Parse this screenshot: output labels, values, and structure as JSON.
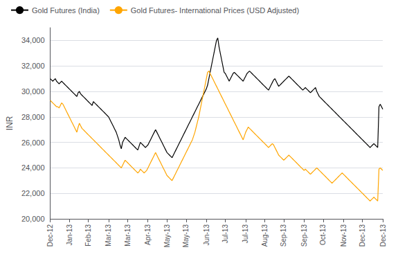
{
  "chart_data": {
    "type": "line",
    "ylabel": "INR",
    "categories": [
      "Dec-12",
      null,
      null,
      null,
      null,
      null,
      null,
      null,
      null,
      null,
      null,
      null,
      null,
      null,
      null,
      "Jan-13",
      null,
      null,
      null,
      null,
      null,
      null,
      null,
      null,
      null,
      null,
      null,
      null,
      null,
      null,
      "Feb-13",
      null,
      null,
      null,
      null,
      null,
      null,
      null,
      null,
      null,
      null,
      null,
      null,
      null,
      null,
      null,
      "Mar-13",
      null,
      null,
      null,
      null,
      null,
      null,
      null,
      null,
      null,
      null,
      null,
      null,
      null,
      null,
      "Mar-13",
      null,
      null,
      null,
      null,
      null,
      null,
      null,
      null,
      null,
      null,
      null,
      null,
      null,
      null,
      null,
      "Apr-13",
      null,
      null,
      null,
      null,
      null,
      null,
      null,
      null,
      null,
      null,
      null,
      null,
      null,
      null,
      "May-13",
      null,
      null,
      null,
      null,
      null,
      null,
      null,
      null,
      null,
      null,
      null,
      null,
      null,
      null,
      "May-13",
      null,
      null,
      null,
      null,
      null,
      null,
      null,
      null,
      null,
      null,
      null,
      null,
      null,
      null,
      null,
      "Jun-13",
      null,
      null,
      null,
      null,
      null,
      null,
      null,
      null,
      null,
      null,
      null,
      null,
      null,
      null,
      "Jul-13",
      null,
      null,
      null,
      null,
      null,
      null,
      null,
      null,
      null,
      null,
      null,
      null,
      null,
      null,
      null,
      "Jul-13",
      null,
      null,
      null,
      null,
      null,
      null,
      null,
      null,
      null,
      null,
      null,
      null,
      null,
      null,
      "Aug-13",
      null,
      null,
      null,
      null,
      null,
      null,
      null,
      null,
      null,
      null,
      null,
      null,
      null,
      null,
      "Sep-13",
      null,
      null,
      null,
      null,
      null,
      null,
      null,
      null,
      null,
      null,
      null,
      null,
      null,
      null,
      null,
      "Sep-13",
      null,
      null,
      null,
      null,
      null,
      null,
      null,
      null,
      null,
      null,
      null,
      null,
      null,
      null,
      "Oct-13",
      null,
      null,
      null,
      null,
      null,
      null,
      null,
      null,
      null,
      null,
      null,
      null,
      null,
      null,
      null,
      "Nov-13",
      null,
      null,
      null,
      null,
      null,
      null,
      null,
      null,
      null,
      null,
      null,
      null,
      null,
      null,
      "Dec-13",
      null,
      null,
      null,
      null,
      null,
      null,
      null,
      null,
      null,
      null,
      null,
      null,
      null,
      null,
      null,
      "Dec-13"
    ],
    "series": [
      {
        "name": "Gold Futures (India)",
        "color": "#000000",
        "values": [
          31000,
          30900,
          30800,
          30900,
          31000,
          30800,
          30700,
          30600,
          30700,
          30800,
          30700,
          30600,
          30500,
          30400,
          30300,
          30200,
          30100,
          30000,
          29900,
          29800,
          29700,
          29600,
          29900,
          30000,
          29800,
          29700,
          29600,
          29500,
          29400,
          29300,
          29200,
          29100,
          29000,
          28900,
          29200,
          29100,
          29000,
          28900,
          28800,
          28700,
          28600,
          28500,
          28400,
          28300,
          28200,
          28100,
          28000,
          27800,
          27600,
          27400,
          27200,
          27000,
          26800,
          26500,
          26200,
          25800,
          25500,
          26000,
          26200,
          26400,
          26300,
          26200,
          26100,
          26000,
          25900,
          25800,
          25700,
          25600,
          25500,
          25400,
          25700,
          26000,
          25900,
          25800,
          25700,
          25600,
          25700,
          25800,
          26000,
          26200,
          26400,
          26600,
          26800,
          27000,
          26800,
          26600,
          26400,
          26200,
          26000,
          25800,
          25600,
          25400,
          25200,
          25100,
          25000,
          24900,
          24800,
          25000,
          25200,
          25400,
          25600,
          25800,
          26000,
          26200,
          26400,
          26600,
          26800,
          27000,
          27200,
          27400,
          27600,
          27800,
          28000,
          28200,
          28400,
          28600,
          28800,
          29000,
          29200,
          29400,
          29600,
          29800,
          30000,
          30200,
          30500,
          31000,
          31500,
          32000,
          32500,
          33000,
          33500,
          34000,
          34200,
          33500,
          33000,
          32500,
          32000,
          31500,
          31400,
          31200,
          31000,
          30800,
          31000,
          31200,
          31400,
          31500,
          31400,
          31300,
          31200,
          31100,
          31000,
          30900,
          30800,
          31000,
          31200,
          31400,
          31500,
          31600,
          31500,
          31400,
          31300,
          31200,
          31100,
          31000,
          30900,
          30800,
          30700,
          30600,
          30500,
          30400,
          30300,
          30200,
          30100,
          30300,
          30500,
          30700,
          30900,
          31000,
          30800,
          30600,
          30400,
          30500,
          30600,
          30700,
          30800,
          30900,
          31000,
          31100,
          31200,
          31100,
          31000,
          30900,
          30800,
          30700,
          30600,
          30500,
          30400,
          30300,
          30200,
          30100,
          30200,
          30300,
          30200,
          30100,
          30000,
          29900,
          30000,
          30100,
          30200,
          30300,
          30000,
          29800,
          29600,
          29500,
          29400,
          29300,
          29200,
          29100,
          29000,
          28900,
          28800,
          28700,
          28600,
          28500,
          28400,
          28300,
          28200,
          28100,
          28000,
          27900,
          27800,
          27700,
          27600,
          27500,
          27400,
          27300,
          27200,
          27100,
          27000,
          26900,
          26800,
          26700,
          26600,
          26500,
          26400,
          26300,
          26200,
          26100,
          26000,
          25900,
          25800,
          25700,
          25600,
          25700,
          25800,
          25900,
          25800,
          25700,
          25600,
          28800,
          29000,
          28800,
          28600
        ]
      },
      {
        "name": "Gold Futures- International Prices (USD Adjusted)",
        "color": "#FFA500",
        "values": [
          29300,
          29200,
          29100,
          29000,
          28900,
          28800,
          28800,
          28700,
          28900,
          29100,
          29000,
          28800,
          28600,
          28400,
          28200,
          28000,
          27800,
          27600,
          27400,
          27200,
          27000,
          26800,
          27200,
          27500,
          27300,
          27100,
          27000,
          26900,
          26800,
          26700,
          26600,
          26500,
          26400,
          26300,
          26200,
          26100,
          26000,
          25900,
          25800,
          25700,
          25600,
          25500,
          25400,
          25300,
          25200,
          25100,
          25000,
          24900,
          24800,
          24700,
          24600,
          24500,
          24400,
          24300,
          24200,
          24100,
          24000,
          24200,
          24400,
          24600,
          24500,
          24400,
          24300,
          24200,
          24100,
          24000,
          23900,
          23800,
          23700,
          23600,
          23700,
          23900,
          23800,
          23700,
          23600,
          23700,
          23800,
          24000,
          24200,
          24400,
          24600,
          24800,
          25000,
          25200,
          25000,
          24800,
          24600,
          24400,
          24200,
          24000,
          23800,
          23600,
          23400,
          23300,
          23200,
          23100,
          23000,
          23200,
          23400,
          23600,
          23800,
          24000,
          24200,
          24400,
          24600,
          24800,
          25000,
          25200,
          25400,
          25600,
          25800,
          26000,
          26200,
          26500,
          26800,
          27200,
          27600,
          28000,
          28500,
          29000,
          29500,
          30000,
          30500,
          31000,
          31500,
          31600,
          31400,
          31200,
          31000,
          30800,
          30600,
          30400,
          30200,
          30000,
          29800,
          29600,
          29400,
          29200,
          29000,
          28800,
          28600,
          28400,
          28200,
          28000,
          27800,
          27600,
          27400,
          27200,
          27000,
          26800,
          26600,
          26400,
          26200,
          26500,
          26800,
          27000,
          27200,
          27100,
          27000,
          26900,
          26800,
          26700,
          26600,
          26500,
          26400,
          26300,
          26200,
          26100,
          26000,
          25900,
          25800,
          25700,
          25600,
          25700,
          25800,
          25900,
          25800,
          25600,
          25400,
          25200,
          25000,
          24900,
          24800,
          24700,
          24600,
          24700,
          24800,
          24900,
          25000,
          24900,
          24800,
          24700,
          24600,
          24500,
          24400,
          24300,
          24200,
          24100,
          24000,
          23900,
          23800,
          23900,
          23800,
          23700,
          23600,
          23500,
          23600,
          23700,
          23800,
          23900,
          24000,
          23900,
          23800,
          23700,
          23600,
          23500,
          23400,
          23300,
          23200,
          23100,
          23000,
          22900,
          22800,
          22900,
          23000,
          23100,
          23200,
          23300,
          23400,
          23500,
          23600,
          23500,
          23400,
          23300,
          23200,
          23100,
          23000,
          22900,
          22800,
          22700,
          22600,
          22500,
          22400,
          22300,
          22200,
          22100,
          22000,
          21900,
          21800,
          21700,
          21600,
          21500,
          21400,
          21500,
          21600,
          21700,
          21600,
          21500,
          21400,
          23900,
          24000,
          23900,
          23800
        ]
      }
    ],
    "ylim": [
      20000,
      35000
    ],
    "yticks": [
      {
        "value": 20000,
        "label": "20,000"
      },
      {
        "value": 22000,
        "label": "22,000"
      },
      {
        "value": 24000,
        "label": "24,000"
      },
      {
        "value": 26000,
        "label": "26,000"
      },
      {
        "value": 28000,
        "label": "28,000"
      },
      {
        "value": 30000,
        "label": "30,000"
      },
      {
        "value": 32000,
        "label": "32,000"
      },
      {
        "value": 34000,
        "label": "34,000"
      }
    ],
    "grid": true,
    "legend": "upper left"
  }
}
